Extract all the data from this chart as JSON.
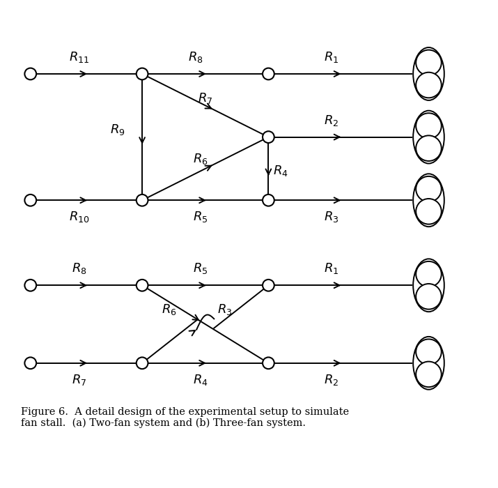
{
  "caption": "Figure 6.  A detail design of the experimental setup to simulate\nfan stall.  (a) Two-fan system and (b) Three-fan system.",
  "bg_color": "#ffffff",
  "line_color": "#000000",
  "fig_width": 7.15,
  "fig_height": 7.0,
  "lw": 1.4,
  "fs": 13,
  "fs_caption": 10.5
}
